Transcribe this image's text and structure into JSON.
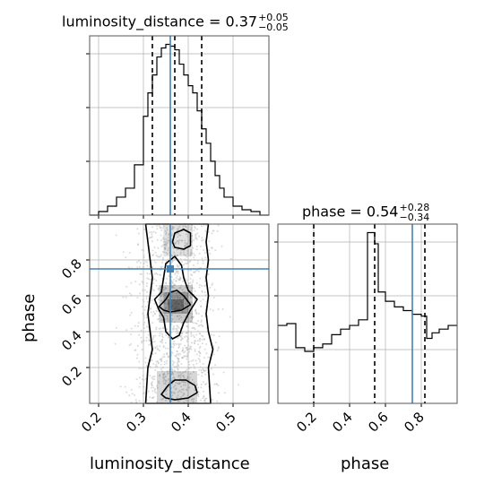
{
  "chart_data": {
    "type": "corner",
    "parameters": [
      "luminosity_distance",
      "phase"
    ],
    "titles": [
      {
        "param": "luminosity_distance",
        "prefix": "luminosity_distance = ",
        "median": "0.37",
        "upper": "+0.05",
        "lower": "−0.05"
      },
      {
        "param": "phase",
        "prefix": "phase = ",
        "median": "0.54",
        "upper": "+0.28",
        "lower": "−0.34"
      }
    ],
    "axes": {
      "luminosity_distance": {
        "range": [
          0.18,
          0.58
        ],
        "ticks": [
          0.2,
          0.3,
          0.4,
          0.5
        ],
        "tick_labels": [
          "0.2",
          "0.3",
          "0.4",
          "0.5"
        ],
        "xlabel": "luminosity_distance"
      },
      "phase": {
        "range": [
          0.0,
          1.0
        ],
        "ticks": [
          0.2,
          0.4,
          0.6,
          0.8
        ],
        "tick_labels": [
          "0.2",
          "0.4",
          "0.6",
          "0.8"
        ],
        "xlabel": "phase",
        "ylabel": "phase"
      }
    },
    "truth": {
      "luminosity_distance": 0.36,
      "phase": 0.75
    },
    "quantiles": {
      "luminosity_distance": [
        0.32,
        0.37,
        0.43
      ],
      "phase": [
        0.2,
        0.54,
        0.82
      ]
    },
    "hist_luminosity_distance": {
      "bin_edges": [
        0.18,
        0.2,
        0.22,
        0.24,
        0.26,
        0.28,
        0.3,
        0.31,
        0.32,
        0.33,
        0.34,
        0.35,
        0.36,
        0.37,
        0.38,
        0.39,
        0.4,
        0.41,
        0.42,
        0.43,
        0.44,
        0.45,
        0.46,
        0.47,
        0.48,
        0.5,
        0.52,
        0.54,
        0.56,
        0.58
      ],
      "counts": [
        0,
        2,
        5,
        10,
        15,
        28,
        55,
        68,
        78,
        88,
        93,
        95,
        94,
        92,
        84,
        78,
        72,
        68,
        58,
        48,
        40,
        30,
        22,
        15,
        10,
        5,
        3,
        2,
        0
      ]
    },
    "hist_phase": {
      "bin_edges": [
        0,
        0.05,
        0.1,
        0.15,
        0.2,
        0.25,
        0.3,
        0.35,
        0.4,
        0.45,
        0.5,
        0.54,
        0.56,
        0.6,
        0.65,
        0.7,
        0.75,
        0.8,
        0.83,
        0.86,
        0.9,
        0.95,
        1.0
      ],
      "counts": [
        42,
        43,
        30,
        28,
        30,
        32,
        37,
        40,
        42,
        45,
        92,
        86,
        60,
        55,
        52,
        50,
        48,
        47,
        35,
        38,
        40,
        42
      ]
    },
    "contours": [
      {
        "level": "outer",
        "points": [
          [
            0.305,
            1.0
          ],
          [
            0.31,
            0.9
          ],
          [
            0.315,
            0.8
          ],
          [
            0.32,
            0.7
          ],
          [
            0.315,
            0.6
          ],
          [
            0.31,
            0.5
          ],
          [
            0.315,
            0.4
          ],
          [
            0.32,
            0.3
          ],
          [
            0.31,
            0.2
          ],
          [
            0.305,
            0.0
          ],
          [
            0.45,
            0.0
          ],
          [
            0.445,
            0.2
          ],
          [
            0.455,
            0.3
          ],
          [
            0.445,
            0.4
          ],
          [
            0.44,
            0.5
          ],
          [
            0.445,
            0.6
          ],
          [
            0.44,
            0.7
          ],
          [
            0.445,
            0.8
          ],
          [
            0.44,
            0.9
          ],
          [
            0.445,
            1.0
          ]
        ]
      },
      {
        "level": "middle",
        "points": [
          [
            0.325,
            0.58
          ],
          [
            0.34,
            0.62
          ],
          [
            0.345,
            0.7
          ],
          [
            0.35,
            0.78
          ],
          [
            0.37,
            0.82
          ],
          [
            0.385,
            0.77
          ],
          [
            0.39,
            0.7
          ],
          [
            0.4,
            0.63
          ],
          [
            0.42,
            0.58
          ],
          [
            0.405,
            0.52
          ],
          [
            0.39,
            0.45
          ],
          [
            0.38,
            0.38
          ],
          [
            0.365,
            0.36
          ],
          [
            0.35,
            0.4
          ],
          [
            0.345,
            0.48
          ],
          [
            0.335,
            0.52
          ]
        ]
      },
      {
        "level": "inner",
        "points": [
          [
            0.335,
            0.54
          ],
          [
            0.35,
            0.58
          ],
          [
            0.36,
            0.62
          ],
          [
            0.375,
            0.63
          ],
          [
            0.39,
            0.6
          ],
          [
            0.405,
            0.55
          ],
          [
            0.385,
            0.52
          ],
          [
            0.36,
            0.51
          ],
          [
            0.345,
            0.52
          ]
        ]
      },
      {
        "level": "upper-lobe",
        "points": [
          [
            0.365,
            0.9
          ],
          [
            0.37,
            0.95
          ],
          [
            0.39,
            0.97
          ],
          [
            0.405,
            0.95
          ],
          [
            0.405,
            0.88
          ],
          [
            0.39,
            0.86
          ],
          [
            0.37,
            0.87
          ]
        ]
      },
      {
        "level": "lower-lobe",
        "points": [
          [
            0.34,
            0.05
          ],
          [
            0.355,
            0.1
          ],
          [
            0.37,
            0.13
          ],
          [
            0.395,
            0.13
          ],
          [
            0.415,
            0.1
          ],
          [
            0.42,
            0.06
          ],
          [
            0.4,
            0.03
          ],
          [
            0.37,
            0.02
          ],
          [
            0.35,
            0.03
          ]
        ]
      }
    ],
    "grid": true,
    "colors": {
      "truth": "#4682b4",
      "hist": "#000000",
      "scatter": "#bdbdbd",
      "grid": "#b0b0b0"
    }
  }
}
